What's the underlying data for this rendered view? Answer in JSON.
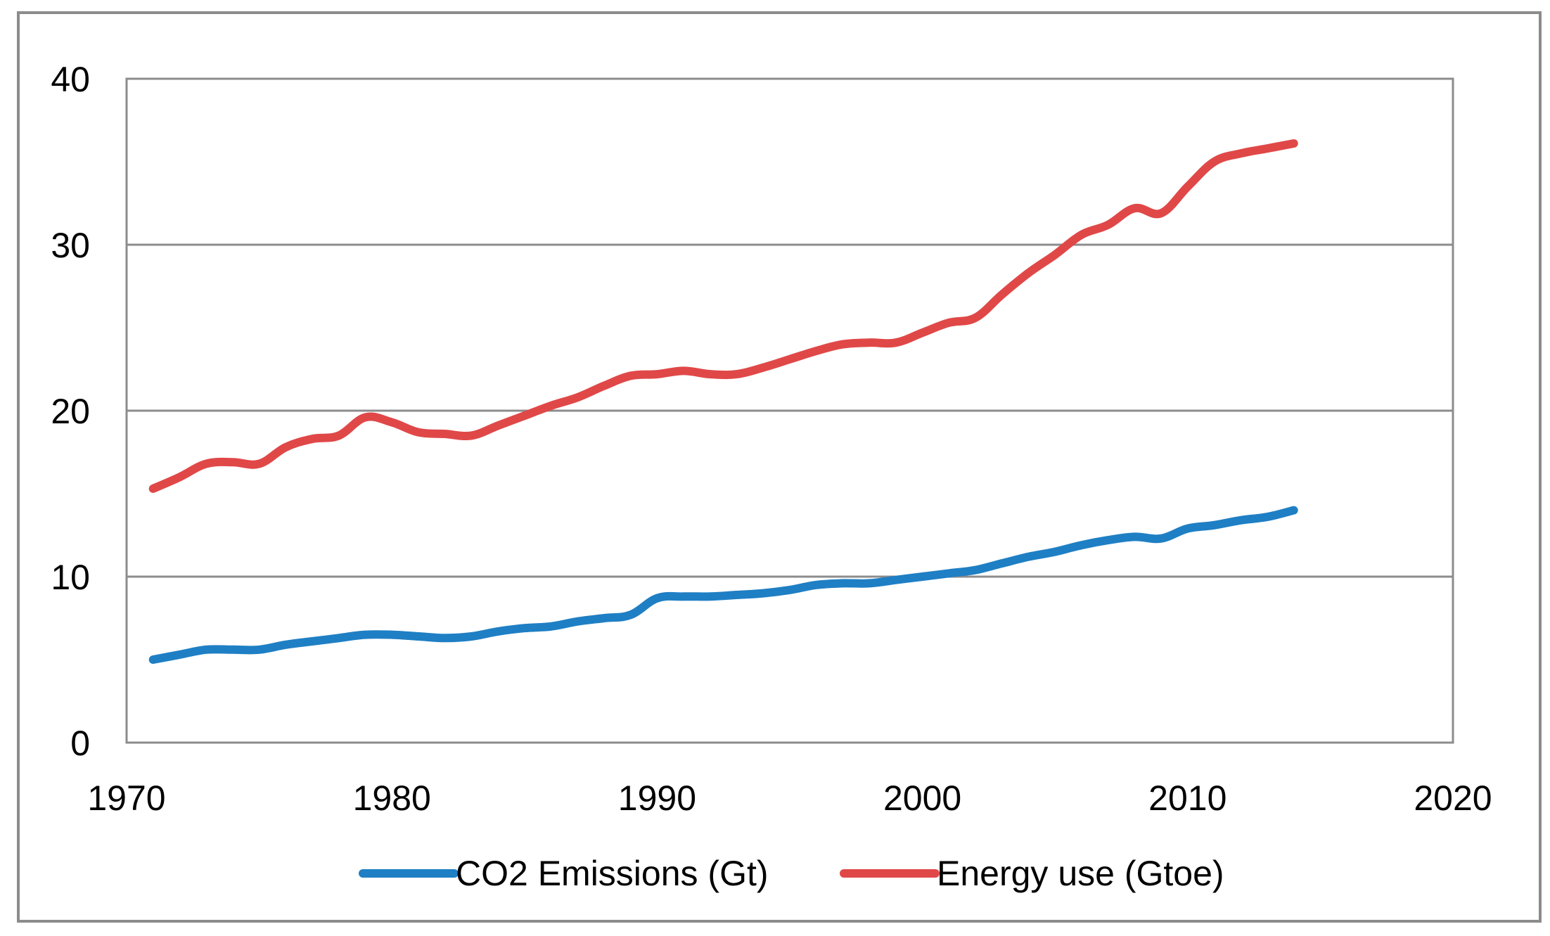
{
  "chart_data": {
    "type": "line",
    "title": "",
    "xlabel": "",
    "ylabel": "",
    "xlim": [
      1970,
      2020
    ],
    "ylim": [
      0,
      40
    ],
    "x_ticks": [
      1970,
      1980,
      1990,
      2000,
      2010,
      2020
    ],
    "y_ticks": [
      0,
      10,
      20,
      30,
      40
    ],
    "x_tick_labels": [
      "1970",
      "1980",
      "1990",
      "2000",
      "2010",
      "2020"
    ],
    "y_tick_labels": [
      "0",
      "10",
      "20",
      "30",
      "40"
    ],
    "grid": "horizontal",
    "legend_position": "bottom",
    "x": [
      1971,
      1972,
      1973,
      1974,
      1975,
      1976,
      1977,
      1978,
      1979,
      1980,
      1981,
      1982,
      1983,
      1984,
      1985,
      1986,
      1987,
      1988,
      1989,
      1990,
      1991,
      1992,
      1993,
      1994,
      1995,
      1996,
      1997,
      1998,
      1999,
      2000,
      2001,
      2002,
      2003,
      2004,
      2005,
      2006,
      2007,
      2008,
      2009,
      2010,
      2011,
      2012,
      2013,
      2014
    ],
    "series": [
      {
        "name": "CO2 Emissions (Gt)",
        "color": "#1f7fc4",
        "values": [
          5.0,
          5.3,
          5.6,
          5.6,
          5.6,
          5.9,
          6.1,
          6.3,
          6.5,
          6.5,
          6.4,
          6.3,
          6.4,
          6.7,
          6.9,
          7.0,
          7.3,
          7.5,
          7.7,
          8.7,
          8.8,
          8.8,
          8.9,
          9.0,
          9.2,
          9.5,
          9.6,
          9.6,
          9.8,
          10.0,
          10.2,
          10.4,
          10.8,
          11.2,
          11.5,
          11.9,
          12.2,
          12.4,
          12.3,
          12.9,
          13.1,
          13.4,
          13.6,
          14.0
        ]
      },
      {
        "name": "Energy use (Gtoe)",
        "color": "#e04848",
        "values": [
          15.3,
          16.0,
          16.8,
          16.9,
          16.8,
          17.8,
          18.3,
          18.5,
          19.6,
          19.3,
          18.7,
          18.6,
          18.5,
          19.1,
          19.7,
          20.3,
          20.8,
          21.5,
          22.1,
          22.2,
          22.4,
          22.2,
          22.2,
          22.6,
          23.1,
          23.6,
          24.0,
          24.1,
          24.1,
          24.7,
          25.3,
          25.6,
          27.0,
          28.3,
          29.4,
          30.6,
          31.2,
          32.2,
          31.9,
          33.5,
          35.0,
          35.5,
          35.8,
          36.1
        ]
      }
    ]
  }
}
